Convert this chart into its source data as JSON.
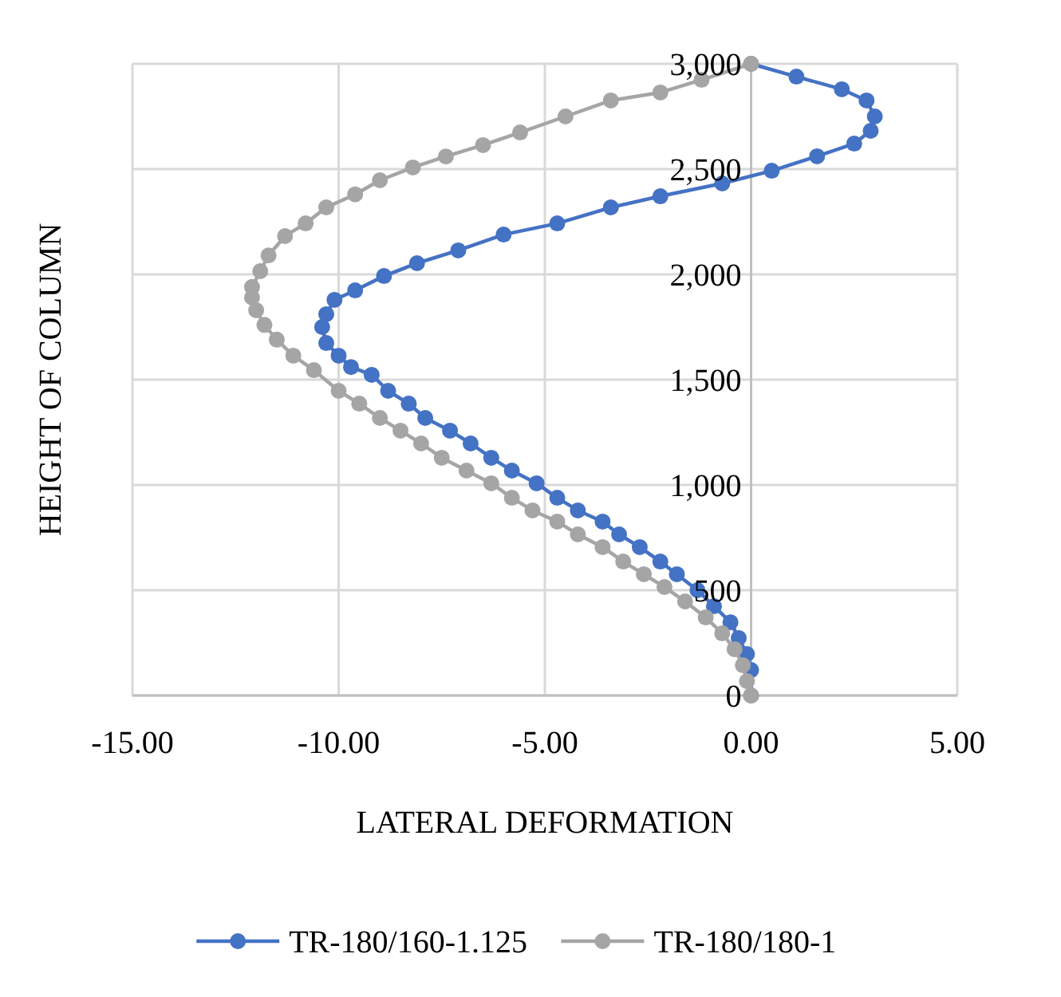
{
  "chart_data": {
    "type": "line",
    "xlabel": "LATERAL DEFORMATION",
    "ylabel": "HEIGHT OF COLUMN",
    "xlim": [
      -15,
      5
    ],
    "ylim": [
      0,
      3000
    ],
    "xticks": [
      {
        "value": -15,
        "label": "-15.00"
      },
      {
        "value": -10,
        "label": "-10.00"
      },
      {
        "value": -5,
        "label": "-5.00"
      },
      {
        "value": 0,
        "label": "0.00"
      },
      {
        "value": 5,
        "label": "5.00"
      }
    ],
    "yticks": [
      0,
      {
        "value": 500,
        "label": "500"
      },
      {
        "value": 1000,
        "label": "1,000"
      },
      {
        "value": 1500,
        "label": "1,500"
      },
      {
        "value": 2000,
        "label": "2,000"
      },
      {
        "value": 2500,
        "label": "2,500"
      },
      {
        "value": 3000,
        "label": "3,000"
      }
    ],
    "grid": true,
    "legend": "bottom",
    "marker": "circle",
    "line_style": "solid",
    "series": [
      {
        "name": "TR-180/160-1.125",
        "color": "#4472c4",
        "x": [
          0,
          0,
          -0.1,
          -0.3,
          -0.5,
          -0.9,
          -1.3,
          -1.8,
          -2.2,
          -2.7,
          -3.2,
          -3.6,
          -4.2,
          -4.7,
          -5.2,
          -5.8,
          -6.3,
          -6.8,
          -7.3,
          -7.9,
          -8.3,
          -8.8,
          -9.2,
          -9.7,
          -10,
          -10.3,
          -10.4,
          -10.3,
          -10.1,
          -9.6,
          -8.9,
          -8.1,
          -7.1,
          -6,
          -4.7,
          -3.4,
          -2.2,
          -0.7,
          0.5,
          1.6,
          2.5,
          2.9,
          3,
          2.8,
          2.2,
          1.1,
          0
        ],
        "values": [
          0,
          121,
          197,
          273,
          348,
          424,
          500,
          576,
          636,
          705,
          765,
          826,
          879,
          939,
          1008,
          1068,
          1129,
          1197,
          1258,
          1318,
          1386,
          1447,
          1523,
          1560,
          1614,
          1674,
          1750,
          1811,
          1879,
          1924,
          1992,
          2053,
          2114,
          2189,
          2242,
          2318,
          2371,
          2432,
          2492,
          2561,
          2621,
          2682,
          2750,
          2826,
          2879,
          2939,
          3000
        ]
      },
      {
        "name": "TR-180/180-1",
        "color": "#a5a5a5",
        "x": [
          0,
          -0.1,
          -0.2,
          -0.4,
          -0.7,
          -1.1,
          -1.6,
          -2.1,
          -2.6,
          -3.1,
          -3.6,
          -4.2,
          -4.7,
          -5.3,
          -5.8,
          -6.3,
          -6.9,
          -7.5,
          -8,
          -8.5,
          -9,
          -9.5,
          -10,
          -10.6,
          -11.1,
          -11.5,
          -11.8,
          -12,
          -12.1,
          -12.1,
          -11.9,
          -11.7,
          -11.3,
          -10.8,
          -10.3,
          -9.6,
          -9,
          -8.2,
          -7.4,
          -6.5,
          -5.6,
          -4.5,
          -3.4,
          -2.2,
          -1.2,
          0
        ],
        "values": [
          0,
          68,
          144,
          220,
          295,
          371,
          447,
          515,
          576,
          636,
          705,
          765,
          826,
          879,
          939,
          1008,
          1068,
          1129,
          1197,
          1258,
          1318,
          1386,
          1447,
          1545,
          1614,
          1690,
          1760,
          1830,
          1890,
          1940,
          2015,
          2090,
          2182,
          2242,
          2318,
          2380,
          2447,
          2508,
          2560,
          2614,
          2674,
          2750,
          2826,
          2864,
          2924,
          3000
        ]
      }
    ]
  }
}
